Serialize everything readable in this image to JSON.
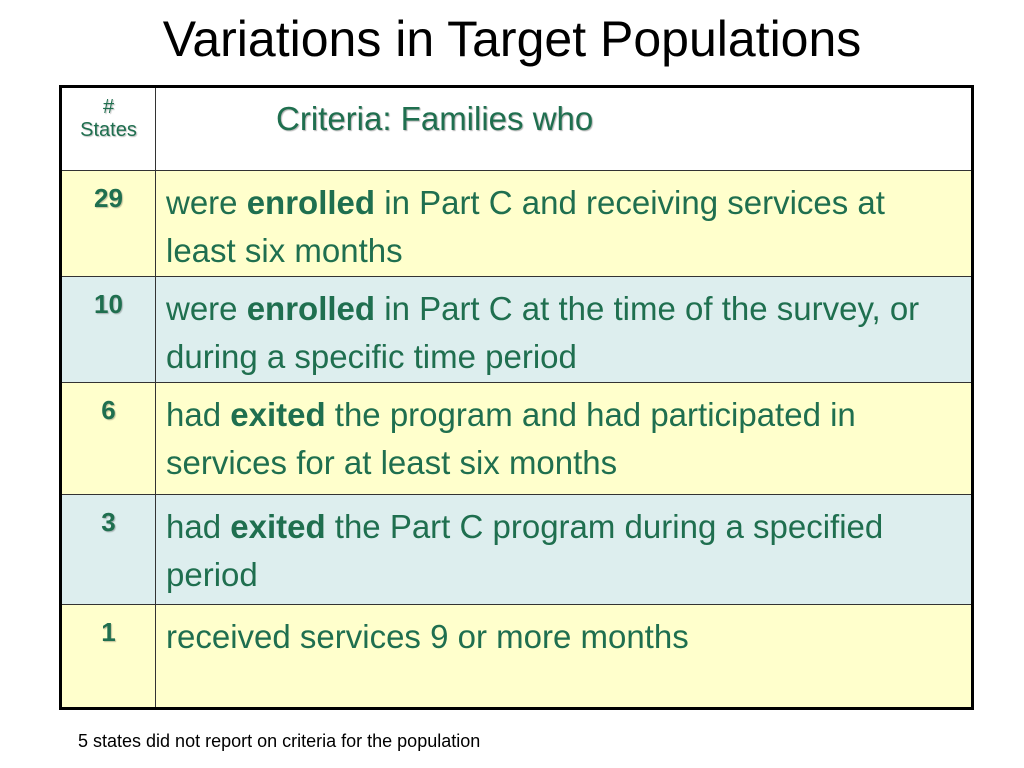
{
  "title": "Variations in Target Populations",
  "table": {
    "header_num": "# States",
    "header_num_hash": "#",
    "header_num_states": "States",
    "header_criteria": "Criteria:  Families who",
    "rows": [
      {
        "num": "29",
        "pre": "were ",
        "emph": "enrolled",
        "post": " in Part C and receiving services at least six months",
        "bg": "#ffffcc"
      },
      {
        "num": "10",
        "pre": "were ",
        "emph": "enrolled",
        "post": " in Part C at the time of the survey, or during a specific time period",
        "bg": "#ddeeee"
      },
      {
        "num": "6",
        "pre": "had ",
        "emph": "exited",
        "post": " the program and had participated in services for at least six months",
        "bg": "#ffffcc"
      },
      {
        "num": "3",
        "pre": "had ",
        "emph": "exited",
        "post": " the Part C program during a specified period",
        "bg": "#ddeeee"
      },
      {
        "num": "1",
        "pre": "",
        "emph": "",
        "post": "received services 9 or more months",
        "bg": "#ffffcc"
      }
    ]
  },
  "footnote": "5 states did not report on criteria for the population",
  "colors": {
    "text_green": "#1f6f4f",
    "row_yellow": "#ffffcc",
    "row_blue": "#ddeeee"
  }
}
